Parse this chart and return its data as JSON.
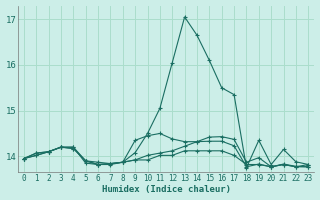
{
  "xlabel": "Humidex (Indice chaleur)",
  "background_color": "#cceee8",
  "grid_color": "#aaddcc",
  "line_color": "#1a6e62",
  "xlim": [
    -0.5,
    23.5
  ],
  "ylim": [
    13.65,
    17.3
  ],
  "yticks": [
    14,
    15,
    16,
    17
  ],
  "xticks": [
    0,
    1,
    2,
    3,
    4,
    5,
    6,
    7,
    8,
    9,
    10,
    11,
    12,
    13,
    14,
    15,
    16,
    17,
    18,
    19,
    20,
    21,
    22,
    23
  ],
  "curves": [
    {
      "x": [
        0,
        1,
        2,
        3,
        4,
        5,
        6,
        7,
        8,
        9,
        10,
        11,
        12,
        13,
        14,
        15,
        16,
        17,
        18,
        19,
        20,
        21,
        22,
        23
      ],
      "y": [
        13.95,
        14.07,
        14.1,
        14.2,
        14.2,
        13.85,
        13.82,
        13.82,
        13.87,
        14.08,
        14.5,
        15.05,
        16.05,
        17.05,
        16.65,
        16.1,
        15.5,
        15.35,
        13.75,
        14.35,
        13.82,
        14.15,
        13.88,
        13.82
      ]
    },
    {
      "x": [
        0,
        1,
        2,
        3,
        4,
        5,
        6,
        7,
        8,
        9,
        10,
        11,
        12,
        13,
        14,
        15,
        16,
        17,
        18,
        19,
        20,
        21,
        22,
        23
      ],
      "y": [
        13.95,
        14.07,
        14.1,
        14.2,
        14.2,
        13.9,
        13.87,
        13.84,
        13.87,
        14.35,
        14.45,
        14.5,
        14.38,
        14.32,
        14.32,
        14.33,
        14.33,
        14.23,
        13.77,
        13.83,
        13.77,
        13.83,
        13.78,
        13.77
      ]
    },
    {
      "x": [
        0,
        1,
        2,
        3,
        4,
        5,
        6,
        7,
        8,
        9,
        10,
        11,
        12,
        13,
        14,
        15,
        16,
        17,
        18,
        19,
        20,
        21,
        22,
        23
      ],
      "y": [
        13.95,
        14.02,
        14.1,
        14.2,
        14.17,
        13.9,
        13.82,
        13.84,
        13.87,
        13.92,
        14.02,
        14.07,
        14.12,
        14.22,
        14.32,
        14.42,
        14.43,
        14.37,
        13.87,
        13.97,
        13.77,
        13.82,
        13.77,
        13.82
      ]
    },
    {
      "x": [
        0,
        1,
        2,
        3,
        4,
        5,
        6,
        7,
        8,
        9,
        10,
        11,
        12,
        13,
        14,
        15,
        16,
        17,
        18,
        19,
        20,
        21,
        22,
        23
      ],
      "y": [
        13.95,
        14.02,
        14.1,
        14.2,
        14.17,
        13.9,
        13.82,
        13.84,
        13.87,
        13.92,
        13.92,
        14.02,
        14.02,
        14.12,
        14.12,
        14.12,
        14.12,
        14.02,
        13.82,
        13.82,
        13.77,
        13.82,
        13.77,
        13.77
      ]
    }
  ]
}
